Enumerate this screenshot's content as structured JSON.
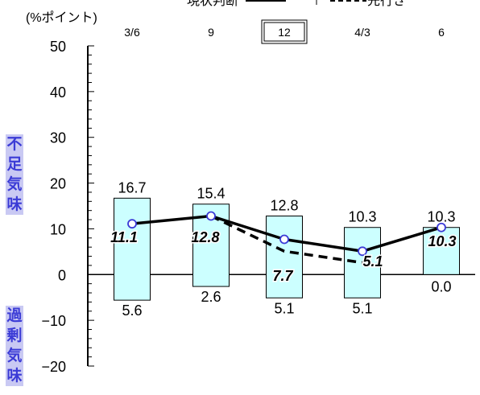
{
  "chart_data": {
    "type": "bar",
    "unit_label": "(%ポイント)",
    "legend": {
      "actual": "現状判断",
      "outlook": "先行き"
    },
    "categories": [
      "3/6",
      "9",
      "12",
      "4/3",
      "6"
    ],
    "highlighted_category": "12",
    "ylim": [
      -20,
      50
    ],
    "yticks": [
      -20,
      -10,
      0,
      10,
      20,
      30,
      40,
      50
    ],
    "ytick_labels": [
      "−20",
      "−10",
      "0",
      "10",
      "20",
      "30",
      "40",
      "50"
    ],
    "shortage_label": "不足気味",
    "excess_label": "過剰気味",
    "shortage_values": [
      16.7,
      15.4,
      12.8,
      10.3,
      10.3
    ],
    "shortage_labels": [
      "16.7",
      "15.4",
      "12.8",
      "10.3",
      "10.3"
    ],
    "excess_values": [
      5.6,
      2.6,
      5.1,
      5.1,
      0.0
    ],
    "excess_labels": [
      "5.6",
      "2.6",
      "5.1",
      "5.1",
      "0.0"
    ],
    "actual_values": [
      11.1,
      12.8,
      7.7,
      5.1,
      10.3
    ],
    "actual_labels": [
      "11.1",
      "12.8",
      "7.7",
      "5.1",
      "10.3"
    ],
    "outlook_values": [
      12.8,
      5.1,
      2.6
    ],
    "bar_fill": "#ccffff",
    "line_color": "#000000",
    "marker_color": "#3b3bd6",
    "side_label_bg": "#c9c9f3",
    "side_label_color": "#3b3bd6"
  }
}
